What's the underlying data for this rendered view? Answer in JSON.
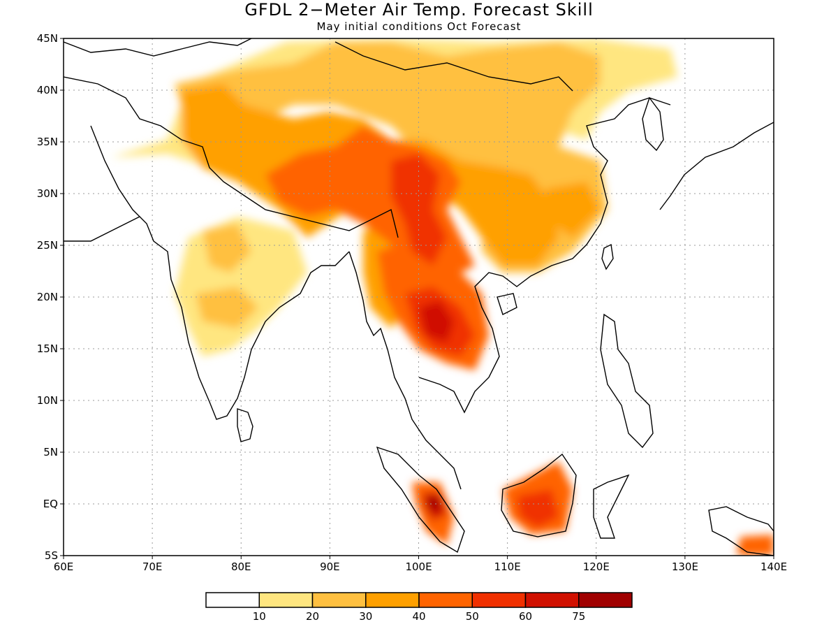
{
  "title": "GFDL 2−Meter Air Temp. Forecast Skill",
  "subtitle": "May initial conditions  Oct Forecast",
  "map": {
    "lon_range": [
      60,
      140
    ],
    "lat_range": [
      -5,
      45
    ],
    "lon_labels": [
      "60E",
      "70E",
      "80E",
      "90E",
      "100E",
      "110E",
      "120E",
      "130E",
      "140E"
    ],
    "lat_labels": [
      "45N",
      "40N",
      "35N",
      "30N",
      "25N",
      "20N",
      "15N",
      "10N",
      "5N",
      "EQ",
      "5S"
    ],
    "grid": true
  },
  "colorbar": {
    "colors": [
      "#ffffff",
      "#ffe680",
      "#ffc040",
      "#ffa000",
      "#ff6400",
      "#f03000",
      "#d01000",
      "#a00000"
    ],
    "labels": [
      "10",
      "20",
      "30",
      "40",
      "50",
      "60",
      "75"
    ]
  },
  "chart_data": {
    "type": "heatmap",
    "title": "GFDL 2−Meter Air Temp. Forecast Skill",
    "subtitle": "May initial conditions  Oct Forecast",
    "x_range": [
      60,
      140
    ],
    "y_range": [
      -5,
      45
    ],
    "levels": [
      10,
      20,
      30,
      40,
      50,
      60,
      75
    ],
    "regions": [
      {
        "lon": [
          95,
          110
        ],
        "lat": [
          22,
          34
        ],
        "level": "40-50"
      },
      {
        "lon": [
          98,
          108
        ],
        "lat": [
          12,
          20
        ],
        "level": "60-75"
      },
      {
        "lon": [
          82,
          100
        ],
        "lat": [
          26,
          38
        ],
        "level": "30-50"
      },
      {
        "lon": [
          75,
          90
        ],
        "lat": [
          34,
          42
        ],
        "level": "30-40"
      },
      {
        "lon": [
          110,
          122
        ],
        "lat": [
          20,
          34
        ],
        "level": "30-40"
      },
      {
        "lon": [
          76,
          88
        ],
        "lat": [
          16,
          26
        ],
        "level": "10-30"
      },
      {
        "lon": [
          110,
          118
        ],
        "lat": [
          -3,
          5
        ],
        "level": "40-60"
      },
      {
        "lon": [
          98,
          104
        ],
        "lat": [
          -3,
          3
        ],
        "level": "40-75"
      },
      {
        "lon": [
          136,
          140
        ],
        "lat": [
          -5,
          -3
        ],
        "level": "40-50"
      }
    ]
  }
}
